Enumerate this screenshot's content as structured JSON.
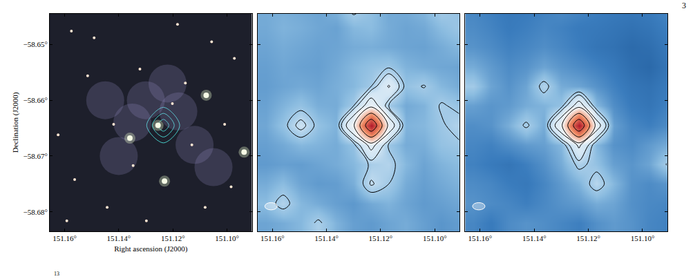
{
  "page_number": "3",
  "caption_fragment": "13",
  "chart_data": [
    {
      "type": "image",
      "xlim": [
        151.1655,
        151.0908
      ],
      "ylim": [
        -58.6835,
        -58.6445
      ],
      "xticks": [
        {
          "value": 151.16,
          "label": "151.16°"
        },
        {
          "value": 151.14,
          "label": "151.14°"
        },
        {
          "value": 151.12,
          "label": "151.12°"
        },
        {
          "value": 151.1,
          "label": "151.10°"
        }
      ],
      "yticks": [
        {
          "value": -58.65,
          "label": "−58.65°"
        },
        {
          "value": -58.66,
          "label": "−58.66°"
        },
        {
          "value": -58.67,
          "label": "−58.67°"
        },
        {
          "value": -58.68,
          "label": "−58.68°"
        }
      ],
      "x_label": "Right ascension (J2000)",
      "y_label": "Declination (J2000)",
      "background": "#1d1f2b",
      "nebula": {
        "x": [
          151.13,
          151.118,
          151.112,
          151.135,
          151.14,
          151.105,
          151.122,
          151.145
        ],
        "y": [
          -58.66,
          -58.662,
          -58.668,
          -58.664,
          -58.67,
          -58.672,
          -58.657,
          -58.66
        ]
      },
      "stars": {
        "x": [
          151.1575,
          151.1491,
          151.1183,
          151.1057,
          151.0973,
          151.1515,
          151.1322,
          151.113,
          151.1624,
          151.1563,
          151.1443,
          151.1298,
          151.1081,
          151.0985,
          151.1592,
          151.1347,
          151.1154,
          151.1009,
          151.1419,
          151.1202
        ],
        "y": [
          -58.6476,
          -58.6488,
          -58.6464,
          -58.6495,
          -58.6525,
          -58.6556,
          -58.6544,
          -58.668,
          -58.6662,
          -58.6742,
          -58.6792,
          -58.6816,
          -58.6792,
          -58.6755,
          -58.6816,
          -58.6717,
          -58.6569,
          -58.6643,
          -58.6643,
          -58.6606
        ]
      },
      "bright_stars": {
        "x": [
          151.1255,
          151.1359,
          151.1077,
          151.1231,
          151.0937
        ],
        "y": [
          -58.6645,
          -58.6668,
          -58.6591,
          -58.6745,
          -58.6693
        ]
      },
      "contour_levels": [
        10,
        20,
        30
      ],
      "color": "#48d1cc"
    },
    {
      "type": "contour",
      "xlim": [
        151.1655,
        151.0908
      ],
      "ylim": [
        -58.6835,
        -58.6445
      ],
      "xticks": [
        {
          "value": 151.16,
          "label": "151.16°"
        },
        {
          "value": 151.14,
          "label": "151.14°"
        },
        {
          "value": 151.12,
          "label": "151.12°"
        },
        {
          "value": 151.1,
          "label": "151.10°"
        }
      ],
      "yticks": [
        {
          "value": -58.65,
          "label": "−58.65°"
        },
        {
          "value": -58.66,
          "label": "−58.66°"
        },
        {
          "value": -58.67,
          "label": "−58.67°"
        },
        {
          "value": -58.68,
          "label": "−58.68°"
        }
      ],
      "tick_labels": "x",
      "grid": {
        "x": [
          151.1625,
          151.156,
          151.1495,
          151.143,
          151.1365,
          151.13,
          151.1235,
          151.117,
          151.1105,
          151.104,
          151.0975,
          151.091
        ],
        "y": [
          -58.682,
          -58.6785,
          -58.675,
          -58.6715,
          -58.668,
          -58.6645,
          -58.661,
          -58.6575,
          -58.654,
          -58.6505,
          -58.647,
          -58.6435
        ],
        "cells": [
          [
            1.2,
            1.5,
            2.0,
            3.3,
            1.8,
            1.0,
            0.8,
            1.2,
            1.5,
            1.0,
            0.6,
            0.9
          ],
          [
            2.2,
            3.6,
            2.0,
            1.5,
            1.0,
            0.7,
            1.4,
            1.8,
            1.2,
            0.8,
            1.0,
            1.3
          ],
          [
            1.5,
            2.2,
            1.2,
            0.8,
            0.9,
            1.6,
            4.2,
            3.0,
            1.5,
            1.0,
            1.4,
            1.8
          ],
          [
            0.8,
            1.0,
            0.9,
            1.2,
            1.5,
            2.0,
            3.2,
            3.6,
            2.0,
            1.2,
            1.8,
            2.2
          ],
          [
            1.0,
            1.4,
            2.0,
            1.8,
            1.5,
            2.5,
            7.0,
            2.8,
            1.5,
            1.6,
            2.5,
            2.8
          ],
          [
            1.3,
            2.5,
            4.6,
            2.5,
            1.8,
            9.0,
            40.0,
            8.0,
            1.8,
            2.0,
            2.8,
            3.6
          ],
          [
            1.1,
            1.8,
            2.5,
            1.6,
            1.5,
            3.0,
            8.0,
            3.0,
            1.4,
            1.8,
            3.2,
            2.6
          ],
          [
            0.9,
            1.2,
            1.4,
            1.2,
            1.6,
            2.0,
            3.0,
            6.2,
            2.5,
            3.1,
            2.0,
            1.5
          ],
          [
            1.0,
            1.3,
            1.1,
            1.0,
            1.4,
            2.0,
            2.5,
            2.8,
            1.8,
            1.5,
            1.3,
            1.2
          ],
          [
            1.2,
            1.5,
            1.3,
            1.1,
            1.2,
            1.5,
            1.6,
            1.4,
            1.2,
            1.1,
            1.5,
            2.0
          ],
          [
            1.4,
            1.8,
            1.6,
            1.3,
            1.1,
            2.0,
            2.2,
            1.5,
            1.2,
            1.4,
            2.2,
            2.8
          ],
          [
            1.5,
            1.6,
            1.4,
            1.2,
            1.8,
            3.5,
            2.4,
            1.4,
            1.5,
            2.0,
            3.2,
            2.5
          ]
        ]
      },
      "zlim": [
        -3,
        40
      ],
      "contour_levels": [
        3,
        4,
        6,
        10,
        20,
        30
      ],
      "color": "#000000",
      "beam": {
        "x": 151.1605,
        "y": -58.679,
        "width": 0.0046,
        "height": 0.0013
      }
    },
    {
      "type": "contour",
      "xlim": [
        151.1655,
        151.0908
      ],
      "ylim": [
        -58.6835,
        -58.6445
      ],
      "xticks": [
        {
          "value": 151.16,
          "label": "151.16°"
        },
        {
          "value": 151.14,
          "label": "151.14°"
        },
        {
          "value": 151.12,
          "label": "151.12°"
        },
        {
          "value": 151.1,
          "label": "151.10°"
        }
      ],
      "yticks": [
        {
          "value": -58.65,
          "label": "−58.65°"
        },
        {
          "value": -58.66,
          "label": "−58.66°"
        },
        {
          "value": -58.67,
          "label": "−58.67°"
        },
        {
          "value": -58.68,
          "label": "−58.68°"
        }
      ],
      "tick_labels": "x",
      "grid": {
        "x": [
          151.1625,
          151.156,
          151.1495,
          151.143,
          151.1365,
          151.13,
          151.1235,
          151.117,
          151.1105,
          151.104,
          151.0975,
          151.091
        ],
        "y": [
          -58.682,
          -58.6785,
          -58.675,
          -58.6715,
          -58.668,
          -58.6645,
          -58.661,
          -58.6575,
          -58.654,
          -58.6505,
          -58.647,
          -58.6435
        ],
        "cells": [
          [
            0.0,
            -0.5,
            0.2,
            0.5,
            0.3,
            0.0,
            -0.3,
            0.4,
            0.8,
            0.5,
            0.0,
            -0.2
          ],
          [
            0.5,
            0.2,
            0.0,
            -0.3,
            0.1,
            0.5,
            0.8,
            1.5,
            1.2,
            0.4,
            0.1,
            0.0
          ],
          [
            0.2,
            0.0,
            -0.4,
            -0.6,
            0.0,
            0.8,
            1.8,
            3.8,
            2.0,
            0.5,
            0.2,
            0.6
          ],
          [
            -0.2,
            -0.5,
            -0.8,
            -0.3,
            0.4,
            1.5,
            3.4,
            2.5,
            1.0,
            0.6,
            1.2,
            3.1
          ],
          [
            0.0,
            -0.2,
            0.3,
            0.8,
            1.0,
            2.0,
            6.5,
            2.0,
            0.5,
            0.2,
            0.8,
            1.5
          ],
          [
            0.3,
            0.5,
            1.6,
            3.3,
            1.5,
            8.5,
            40.0,
            7.5,
            1.0,
            0.0,
            -0.3,
            0.2
          ],
          [
            1.0,
            0.6,
            0.8,
            1.5,
            1.8,
            2.5,
            7.5,
            2.0,
            0.3,
            -0.5,
            -0.8,
            -0.2
          ],
          [
            3.0,
            1.2,
            0.5,
            1.2,
            3.6,
            1.5,
            1.2,
            0.5,
            -0.2,
            -0.8,
            -1.0,
            -0.5
          ],
          [
            1.5,
            0.8,
            0.2,
            0.5,
            1.2,
            0.6,
            0.2,
            -0.2,
            -0.6,
            -1.2,
            -1.5,
            -0.8
          ],
          [
            0.5,
            0.2,
            -0.2,
            0.0,
            0.3,
            0.0,
            -0.4,
            -0.8,
            -1.0,
            -1.4,
            -1.2,
            -0.6
          ],
          [
            0.2,
            -0.1,
            -0.5,
            -0.3,
            0.0,
            -0.2,
            -0.5,
            -0.6,
            -0.8,
            -1.0,
            -0.8,
            -0.3
          ],
          [
            0.0,
            -0.3,
            -0.6,
            -0.5,
            -0.2,
            0.2,
            0.0,
            -0.3,
            -0.5,
            -0.6,
            -0.4,
            0.0
          ]
        ]
      },
      "zlim": [
        -3,
        40
      ],
      "contour_levels": [
        3,
        4,
        6,
        10,
        20,
        30
      ],
      "color": "#000000",
      "beam": {
        "x": 151.1605,
        "y": -58.679,
        "width": 0.0046,
        "height": 0.0013
      }
    }
  ]
}
